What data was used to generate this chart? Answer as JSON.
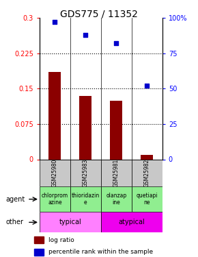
{
  "title": "GDS775 / 11352",
  "samples": [
    "GSM25980",
    "GSM25983",
    "GSM25981",
    "GSM25982"
  ],
  "log_ratios": [
    0.185,
    0.135,
    0.125,
    0.01
  ],
  "percentile_ranks": [
    97,
    88,
    82,
    52
  ],
  "bar_color": "#8B0000",
  "dot_color": "#0000CC",
  "sample_box_color": "#C8C8C8",
  "agent_colors": [
    "#90EE90",
    "#90EE90",
    "#90EE90",
    "#90EE90"
  ],
  "typical_color": "#FF80FF",
  "atypical_color": "#EE00EE",
  "agents": [
    "chlorprom\nazine",
    "thioridazin\ne",
    "olanzap\nine",
    "quetiapi\nne"
  ],
  "ylim_left": [
    0,
    0.3
  ],
  "ylim_right": [
    0,
    100
  ],
  "yticks_left": [
    0,
    0.075,
    0.15,
    0.225,
    0.3
  ],
  "ytick_labels_left": [
    "0",
    "0.075",
    "0.15",
    "0.225",
    "0.3"
  ],
  "yticks_right": [
    0,
    25,
    50,
    75,
    100
  ],
  "ytick_labels_right": [
    "0",
    "25",
    "50",
    "75",
    "100%"
  ],
  "hlines": [
    0.075,
    0.15,
    0.225
  ],
  "legend_bar": "log ratio",
  "legend_dot": "percentile rank within the sample"
}
